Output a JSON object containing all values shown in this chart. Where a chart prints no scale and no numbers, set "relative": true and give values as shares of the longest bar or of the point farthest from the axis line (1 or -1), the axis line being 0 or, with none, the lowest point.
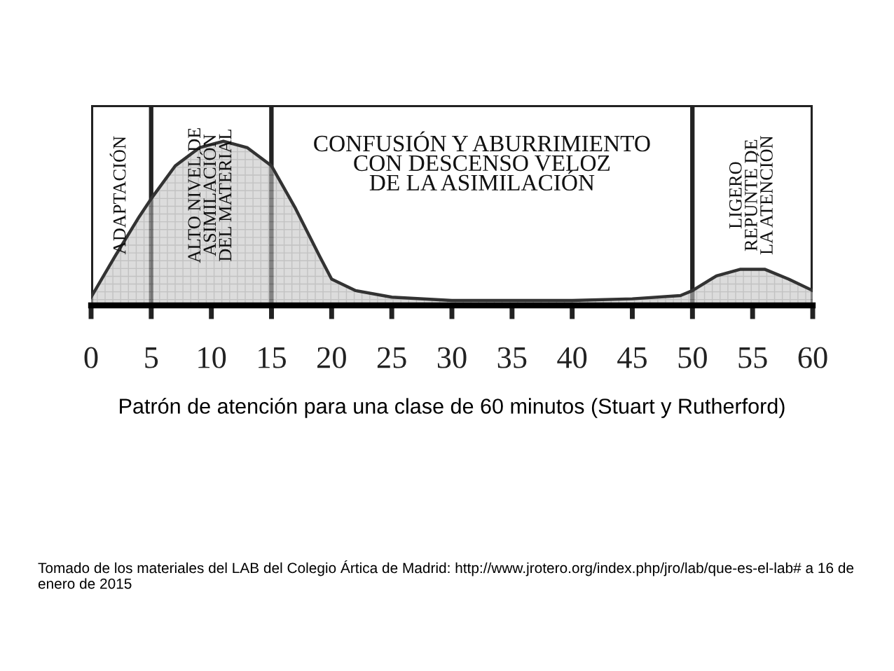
{
  "chart_data": {
    "type": "area",
    "relative": true,
    "xlabel": "Patrón de atención para una clase de 60 minutos (Stuart y Rutherford)",
    "x": [
      0,
      2,
      4,
      5,
      7,
      9,
      11,
      13,
      15,
      17,
      19,
      20,
      22,
      25,
      30,
      40,
      45,
      49,
      50,
      52,
      54,
      56,
      58,
      60
    ],
    "series": [
      {
        "color": "#c4c4c4",
        "values": [
          0.05,
          0.3,
          0.54,
          0.65,
          0.85,
          0.96,
          1.0,
          0.96,
          0.85,
          0.59,
          0.3,
          0.16,
          0.09,
          0.05,
          0.03,
          0.03,
          0.04,
          0.06,
          0.09,
          0.18,
          0.22,
          0.22,
          0.16,
          0.09
        ]
      }
    ],
    "xlim": [
      0,
      60
    ],
    "xticks": [
      0,
      5,
      10,
      15,
      20,
      25,
      30,
      35,
      40,
      45,
      50,
      55,
      60
    ],
    "bands": [
      {
        "axis": "x",
        "from": 0,
        "to": 5,
        "label": "ADAPTACIÓN",
        "color": "#ffffff"
      },
      {
        "axis": "x",
        "from": 5,
        "to": 15,
        "label": "ALTO NIVEL DE\nASIMILACIÓN\nDEL MATERIAL",
        "color": "#ffffff"
      },
      {
        "axis": "x",
        "from": 15,
        "to": 50,
        "label": "CONFUSIÓN Y ABURRIMIENTO\nCON DESCENSO VELOZ\nDE LA ASIMILACIÓN",
        "color": "#ffffff"
      },
      {
        "axis": "x",
        "from": 50,
        "to": 60,
        "label": "LIGERO\nREPUNTE DE\nLA ATENCIÓN",
        "color": "#ffffff"
      }
    ],
    "annotations": [
      "Tomado de los materiales del LAB del Colegio Ártica de Madrid: http://www.jrotero.org/index.php/jro/lab/que-es-el-lab# a 16 de enero de 2015"
    ],
    "grid": false,
    "legend": false
  }
}
